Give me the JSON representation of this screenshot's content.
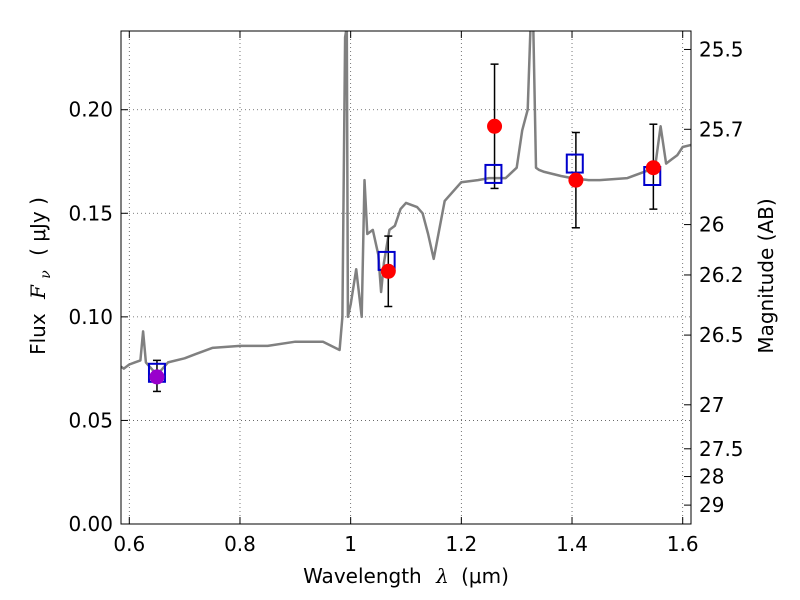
{
  "chart_data": {
    "type": "scatter",
    "xlabel": "Wavelength",
    "xlabel_symbol": "λ",
    "xlabel_unit": "(μm)",
    "ylabel": "Flux",
    "ylabel_symbol": "F",
    "ylabel_subscript": "ν",
    "ylabel_unit": "( μJy )",
    "y2label": "Magnitude (AB)",
    "xlim": [
      0.585,
      1.615
    ],
    "ylim": [
      0.0,
      0.238
    ],
    "xticks": [
      0.6,
      0.8,
      1.0,
      1.2,
      1.4,
      1.6
    ],
    "xtick_labels": [
      "0.6",
      "0.8",
      "1",
      "1.2",
      "1.4",
      "1.6"
    ],
    "yticks": [
      0.0,
      0.05,
      0.1,
      0.15,
      0.2
    ],
    "ytick_labels": [
      "0.00",
      "0.05",
      "0.10",
      "0.15",
      "0.20"
    ],
    "magnitude_ticks": [
      {
        "mag": 25.5,
        "label": "25.5"
      },
      {
        "mag": 25.7,
        "label": "25.7"
      },
      {
        "mag": 26.0,
        "label": "26"
      },
      {
        "mag": 26.2,
        "label": "26.2"
      },
      {
        "mag": 26.5,
        "label": "26.5"
      },
      {
        "mag": 27.0,
        "label": "27"
      },
      {
        "mag": 27.5,
        "label": "27.5"
      },
      {
        "mag": 28.0,
        "label": "28"
      },
      {
        "mag": 29.0,
        "label": "29"
      }
    ],
    "grid": true,
    "colors": {
      "model": "#808080",
      "observed": "#ff0000",
      "observed_first": "#9900cc",
      "model_box": "#0000cc",
      "error": "#000000",
      "grid": "#555555"
    },
    "series": [
      {
        "name": "model spectrum",
        "kind": "line",
        "x": [
          0.585,
          0.59,
          0.6,
          0.61,
          0.62,
          0.625,
          0.63,
          0.65,
          0.67,
          0.7,
          0.72,
          0.75,
          0.8,
          0.85,
          0.9,
          0.95,
          0.98,
          0.985,
          0.99,
          0.993,
          0.995,
          1.0,
          1.01,
          1.02,
          1.025,
          1.03,
          1.04,
          1.05,
          1.055,
          1.06,
          1.07,
          1.08,
          1.09,
          1.1,
          1.12,
          1.13,
          1.14,
          1.15,
          1.17,
          1.2,
          1.23,
          1.25,
          1.28,
          1.3,
          1.31,
          1.32,
          1.325,
          1.33,
          1.335,
          1.34,
          1.35,
          1.38,
          1.4,
          1.43,
          1.45,
          1.5,
          1.53,
          1.55,
          1.56,
          1.57,
          1.58,
          1.59,
          1.6,
          1.615
        ],
        "y": [
          0.076,
          0.075,
          0.077,
          0.078,
          0.079,
          0.093,
          0.078,
          0.072,
          0.078,
          0.08,
          0.082,
          0.085,
          0.086,
          0.086,
          0.088,
          0.088,
          0.084,
          0.1,
          0.235,
          0.24,
          0.1,
          0.106,
          0.123,
          0.1,
          0.166,
          0.14,
          0.142,
          0.13,
          0.112,
          0.126,
          0.142,
          0.144,
          0.152,
          0.155,
          0.153,
          0.15,
          0.14,
          0.128,
          0.156,
          0.165,
          0.166,
          0.167,
          0.167,
          0.172,
          0.19,
          0.2,
          0.24,
          0.24,
          0.172,
          0.171,
          0.17,
          0.168,
          0.167,
          0.166,
          0.166,
          0.167,
          0.17,
          0.172,
          0.192,
          0.174,
          0.176,
          0.178,
          0.182,
          0.183
        ]
      },
      {
        "name": "model band flux",
        "kind": "box",
        "x": [
          0.65,
          1.065,
          1.258,
          1.405,
          1.545
        ],
        "y": [
          0.073,
          0.127,
          0.169,
          0.174,
          0.168
        ]
      },
      {
        "name": "observed flux",
        "kind": "errorbar",
        "x": [
          0.65,
          1.068,
          1.26,
          1.407,
          1.547
        ],
        "y": [
          0.071,
          0.122,
          0.192,
          0.166,
          0.172
        ],
        "yerr_low": [
          0.007,
          0.017,
          0.03,
          0.023,
          0.02
        ],
        "yerr_high": [
          0.008,
          0.017,
          0.03,
          0.023,
          0.021
        ]
      }
    ]
  }
}
